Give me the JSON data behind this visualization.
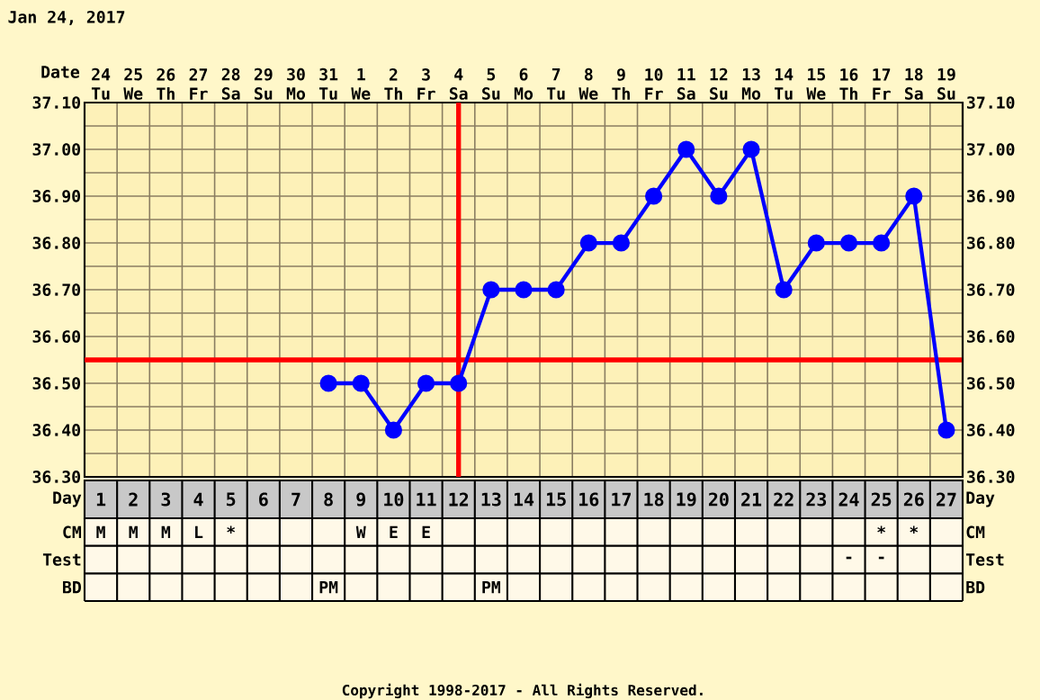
{
  "chart_data": [
    {
      "type": "line",
      "title": "Jan 24, 2017",
      "xlabel": "Date",
      "categories": [
        "24 Tu",
        "25 We",
        "26 Th",
        "27 Fr",
        "28 Sa",
        "29 Su",
        "30 Mo",
        "31 Tu",
        "1 We",
        "2 Th",
        "3 Fr",
        "4 Sa",
        "5 Su",
        "6 Mo",
        "7 Tu",
        "8 We",
        "9 Th",
        "10 Fr",
        "11 Sa",
        "12 Su",
        "13 Mo",
        "14 Tu",
        "15 We",
        "16 Th",
        "17 Fr",
        "18 Sa",
        "19 Su"
      ],
      "series": [
        {
          "color": "#0000ff",
          "values": [
            null,
            null,
            null,
            null,
            null,
            null,
            null,
            36.5,
            36.5,
            36.4,
            36.5,
            36.5,
            36.7,
            36.7,
            36.7,
            36.8,
            36.8,
            36.9,
            37.0,
            36.9,
            37.0,
            36.7,
            36.8,
            36.8,
            36.8,
            36.9,
            36.4
          ]
        }
      ],
      "ylim": [
        36.3,
        37.1
      ],
      "yticks": [
        {
          "value": 36.3,
          "label": "36.30"
        },
        {
          "value": 36.4,
          "label": "36.40"
        },
        {
          "value": 36.5,
          "label": "36.50"
        },
        {
          "value": 36.6,
          "label": "36.60"
        },
        {
          "value": 36.7,
          "label": "36.70"
        },
        {
          "value": 36.8,
          "label": "36.80"
        },
        {
          "value": 36.9,
          "label": "36.90"
        },
        {
          "value": 37.0,
          "label": "37.00"
        },
        {
          "value": 37.1,
          "label": "37.10"
        }
      ],
      "y2lim": [
        36.3,
        37.1
      ],
      "y2ticks": [
        {
          "value": 36.3,
          "label": "36.30"
        },
        {
          "value": 36.4,
          "label": "36.40"
        },
        {
          "value": 36.5,
          "label": "36.50"
        },
        {
          "value": 36.6,
          "label": "36.60"
        },
        {
          "value": 36.7,
          "label": "36.70"
        },
        {
          "value": 36.8,
          "label": "36.80"
        },
        {
          "value": 36.9,
          "label": "36.90"
        },
        {
          "value": 37.0,
          "label": "37.00"
        },
        {
          "value": 37.1,
          "label": "37.10"
        }
      ],
      "x2label": "Day",
      "x2lim": [
        0.5,
        27.5
      ],
      "x2ticks": [
        1,
        2,
        3,
        4,
        5,
        6,
        7,
        8,
        9,
        10,
        11,
        12,
        13,
        14,
        15,
        16,
        17,
        18,
        19,
        20,
        21,
        22,
        23,
        24,
        25,
        26,
        27
      ],
      "grid": true,
      "marker": "circle",
      "line_style": "solid",
      "ref_lines": [
        {
          "axis": "x",
          "value": "4 Sa",
          "color": "#ff0000"
        },
        {
          "axis": "y",
          "value": 36.55,
          "color": "#ff0000"
        }
      ]
    },
    {
      "type": "other",
      "y_categories": [
        "CM",
        "Test",
        "BD"
      ],
      "y2_categories": [
        "CM",
        "Test",
        "BD"
      ],
      "cell_labels": [
        [
          "M",
          "M",
          "M",
          "L",
          "*",
          null,
          null,
          null,
          "W",
          "E",
          "E",
          null,
          null,
          null,
          null,
          null,
          null,
          null,
          null,
          null,
          null,
          null,
          null,
          null,
          "*",
          "*",
          null
        ],
        [
          null,
          null,
          null,
          null,
          null,
          null,
          null,
          null,
          null,
          null,
          null,
          null,
          null,
          null,
          null,
          null,
          null,
          null,
          null,
          null,
          null,
          null,
          null,
          "-",
          "-",
          null,
          null
        ],
        [
          null,
          null,
          null,
          null,
          null,
          null,
          null,
          "PM",
          null,
          null,
          null,
          null,
          "PM",
          null,
          null,
          null,
          null,
          null,
          null,
          null,
          null,
          null,
          null,
          null,
          null,
          null,
          null
        ]
      ],
      "annotations": [
        "Copyright 1998-2017 - All Rights Reserved."
      ]
    }
  ]
}
